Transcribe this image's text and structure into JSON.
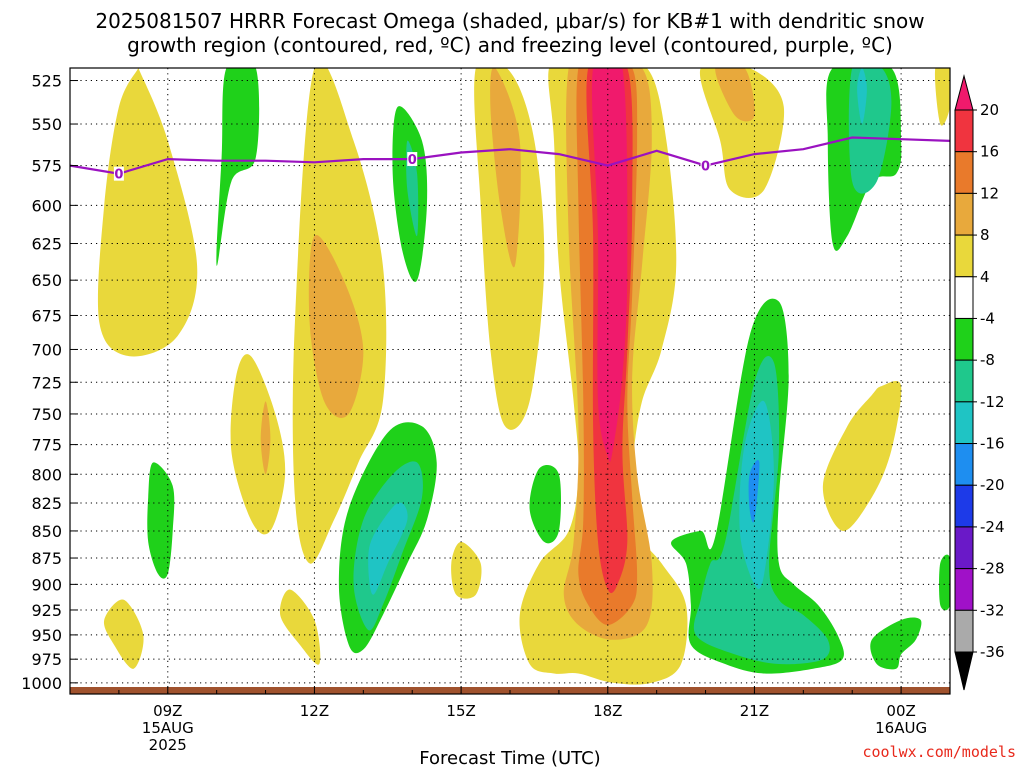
{
  "header": {
    "title_line1": "2025081507 HRRR Forecast Omega (shaded, μbar/s) for KB#1 with dendritic snow",
    "title_line2": "growth region (contoured, red, ºC) and freezing level (contoured, purple, ºC)"
  },
  "footer": {
    "credit": "coolwx.com/models",
    "credit_color": "#e8291c"
  },
  "colors": {
    "ground": "#a0522d",
    "freezing_line": "#9a12c0"
  },
  "chart_data": {
    "type": "heatmap",
    "title": "2025081507 HRRR Forecast Omega (shaded, μbar/s) for KB#1 with dendritic snow growth region (contoured, red, ºC) and freezing level (contoured, purple, ºC)",
    "xlabel": "Forecast Time (UTC)",
    "ylabel": "",
    "x_range_hours_utc": [
      7,
      25
    ],
    "y_range_hpa": [
      1012,
      518
    ],
    "y_scale": "log-pressure, inverted",
    "grid": true,
    "y_ticks": [
      525,
      550,
      575,
      600,
      625,
      650,
      675,
      700,
      725,
      750,
      775,
      800,
      825,
      850,
      875,
      900,
      925,
      950,
      975,
      1000
    ],
    "x_ticks": [
      {
        "hour": 9,
        "lines": [
          "09Z",
          "15AUG",
          "2025"
        ]
      },
      {
        "hour": 12,
        "lines": [
          "12Z"
        ]
      },
      {
        "hour": 15,
        "lines": [
          "15Z"
        ]
      },
      {
        "hour": 18,
        "lines": [
          "18Z"
        ]
      },
      {
        "hour": 21,
        "lines": [
          "21Z"
        ]
      },
      {
        "hour": 24,
        "lines": [
          "00Z",
          "16AUG"
        ]
      }
    ],
    "colorbar": {
      "labels": [
        "20",
        "16",
        "12",
        "8",
        "4",
        "-4",
        "-8",
        "-12",
        "-16",
        "-20",
        "-24",
        "-28",
        "-32",
        "-36"
      ],
      "colors": [
        "#f01a6c",
        "#f0343f",
        "#e97a2b",
        "#e8a93c",
        "#e9d83b",
        "#ffffff",
        "#1fd11a",
        "#1fc88c",
        "#1fc4c4",
        "#1e8ef0",
        "#1d3ae8",
        "#6a19c8",
        "#a011c8",
        "#aaaaaa",
        "#000000"
      ]
    },
    "freezing_level": {
      "label": "0",
      "hours": [
        7,
        8,
        9,
        10,
        11,
        12,
        13,
        14,
        15,
        16,
        17,
        18,
        19,
        20,
        21,
        22,
        23,
        24,
        25
      ],
      "hpa": [
        575,
        580,
        571,
        572,
        572,
        573,
        571,
        571,
        567,
        565,
        568,
        575,
        566,
        575,
        568,
        565,
        558,
        559,
        560
      ],
      "label_hours": [
        8,
        14,
        20
      ]
    },
    "omega_regions": [
      {
        "level": 4,
        "hours": [
          8.4,
          9.0,
          9.6,
          9.2,
          8.2,
          7.6,
          7.7,
          8.0,
          8.4
        ],
        "hpa": [
          518,
          560,
          640,
          690,
          705,
          680,
          600,
          540,
          518
        ]
      },
      {
        "level": 4,
        "hours": [
          10.7,
          11.2,
          11.4,
          11.1,
          10.7,
          10.3,
          10.4
        ],
        "hpa": [
          705,
          750,
          800,
          850,
          840,
          780,
          720
        ]
      },
      {
        "level": 8,
        "hours": [
          11.0,
          11.1,
          11.0,
          10.9
        ],
        "hpa": [
          740,
          770,
          800,
          770
        ]
      },
      {
        "level": 4,
        "hours": [
          8.1,
          8.5,
          8.3,
          7.9,
          7.7
        ],
        "hpa": [
          915,
          950,
          985,
          960,
          935
        ]
      },
      {
        "level": 4,
        "hours": [
          12.0,
          12.8,
          13.4,
          13.4,
          12.9,
          12.4,
          11.9,
          11.6,
          11.6
        ],
        "hpa": [
          518,
          560,
          640,
          740,
          790,
          840,
          880,
          820,
          680
        ]
      },
      {
        "level": 8,
        "hours": [
          12.0,
          12.6,
          13.0,
          12.7,
          12.2,
          11.9
        ],
        "hpa": [
          620,
          650,
          700,
          750,
          740,
          680
        ]
      },
      {
        "level": 4,
        "hours": [
          11.5,
          12.0,
          12.1,
          11.7,
          11.3
        ],
        "hpa": [
          905,
          935,
          980,
          960,
          930
        ]
      },
      {
        "level": 4,
        "hours": [
          15.0,
          15.4,
          15.3,
          14.9,
          14.8
        ],
        "hpa": [
          860,
          880,
          910,
          910,
          880
        ]
      },
      {
        "level": 4,
        "hours": [
          15.3,
          16.0,
          16.5,
          16.7,
          16.4,
          15.9,
          15.6,
          15.4
        ],
        "hpa": [
          518,
          520,
          560,
          640,
          740,
          760,
          700,
          600
        ]
      },
      {
        "level": 8,
        "hours": [
          15.7,
          16.2,
          16.1,
          15.8,
          15.6
        ],
        "hpa": [
          518,
          560,
          640,
          600,
          540
        ]
      },
      {
        "level": 4,
        "hours": [
          16.8,
          17.3,
          17.9,
          18.8,
          19.2,
          19.4,
          19.1,
          18.7,
          18.5,
          18.4,
          19.1,
          19.6,
          19.5,
          18.9,
          18.1,
          17.4,
          16.9,
          16.4,
          16.2,
          16.6,
          17.2,
          17.4,
          17.3,
          17.0,
          16.9
        ],
        "hpa": [
          518,
          518,
          518,
          518,
          560,
          640,
          700,
          740,
          790,
          840,
          880,
          920,
          980,
          1000,
          1000,
          990,
          990,
          980,
          930,
          880,
          850,
          800,
          740,
          640,
          560
        ]
      },
      {
        "level": 8,
        "hours": [
          17.2,
          17.8,
          18.7,
          18.9,
          18.7,
          18.5,
          18.6,
          18.9,
          18.8,
          18.1,
          17.4,
          17.1,
          17.3,
          17.4,
          17.2
        ],
        "hpa": [
          518,
          518,
          518,
          560,
          640,
          720,
          800,
          880,
          940,
          955,
          940,
          910,
          860,
          760,
          620
        ]
      },
      {
        "level": 12,
        "hours": [
          17.4,
          17.9,
          18.5,
          18.6,
          18.5,
          18.4,
          18.5,
          18.6,
          18.5,
          18.0,
          17.6,
          17.4,
          17.5,
          17.5,
          17.4
        ],
        "hpa": [
          518,
          518,
          518,
          560,
          660,
          740,
          820,
          890,
          920,
          940,
          920,
          890,
          840,
          740,
          600
        ]
      },
      {
        "level": 16,
        "hours": [
          17.6,
          18.4,
          18.5,
          18.4,
          18.3,
          18.4,
          18.2,
          18.0,
          17.8,
          17.7,
          17.7
        ],
        "hpa": [
          518,
          518,
          600,
          700,
          780,
          860,
          900,
          905,
          860,
          760,
          620
        ]
      },
      {
        "level": 20,
        "hours": [
          17.7,
          18.3,
          18.4,
          18.3,
          18.1,
          18.0,
          17.8,
          17.8
        ],
        "hpa": [
          518,
          518,
          640,
          720,
          780,
          785,
          740,
          620
        ]
      },
      {
        "level": 4,
        "hours": [
          19.9,
          20.9,
          21.6,
          21.2,
          20.5,
          20.3
        ],
        "hpa": [
          518,
          518,
          540,
          590,
          590,
          560
        ]
      },
      {
        "level": 8,
        "hours": [
          20.2,
          20.8,
          21.0,
          20.6
        ],
        "hpa": [
          518,
          518,
          545,
          545
        ]
      },
      {
        "level": 4,
        "hours": [
          23.6,
          24.0,
          23.8,
          23.4,
          22.8,
          22.4,
          22.9,
          23.4
        ],
        "hpa": [
          728,
          728,
          780,
          820,
          850,
          810,
          760,
          735
        ]
      },
      {
        "level": 4,
        "hours": [
          24.7,
          25.0,
          25.0,
          24.8
        ],
        "hpa": [
          518,
          518,
          540,
          550
        ]
      },
      {
        "level": -4,
        "hours": [
          10.2,
          10.8,
          10.8,
          10.3,
          10.0,
          10.1
        ],
        "hpa": [
          518,
          518,
          570,
          585,
          640,
          570
        ]
      },
      {
        "level": -4,
        "hours": [
          13.7,
          14.2,
          14.3,
          14.1,
          13.8,
          13.6
        ],
        "hpa": [
          540,
          560,
          600,
          650,
          630,
          580
        ]
      },
      {
        "level": -8,
        "hours": [
          13.9,
          14.1,
          14.1,
          13.9
        ],
        "hpa": [
          560,
          580,
          620,
          590
        ]
      },
      {
        "level": -4,
        "hours": [
          8.7,
          9.1,
          9.1,
          9.0,
          8.8,
          8.6,
          8.6
        ],
        "hpa": [
          790,
          810,
          850,
          890,
          890,
          860,
          820
        ]
      },
      {
        "level": -4,
        "hours": [
          12.7,
          13.5,
          14.2,
          14.5,
          14.3,
          13.9,
          13.4,
          13.0,
          12.7,
          12.5
        ],
        "hpa": [
          830,
          765,
          760,
          790,
          840,
          880,
          930,
          965,
          960,
          900
        ]
      },
      {
        "level": -8,
        "hours": [
          13.0,
          13.6,
          14.1,
          14.2,
          13.8,
          13.4,
          13.1,
          12.8
        ],
        "hpa": [
          840,
          800,
          790,
          820,
          870,
          920,
          945,
          900
        ]
      },
      {
        "level": -12,
        "hours": [
          13.2,
          13.7,
          13.9,
          13.5,
          13.2,
          13.1
        ],
        "hpa": [
          855,
          825,
          840,
          880,
          910,
          880
        ]
      },
      {
        "level": -4,
        "hours": [
          16.6,
          17.0,
          17.0,
          16.7,
          16.4
        ],
        "hpa": [
          795,
          800,
          850,
          860,
          830
        ]
      },
      {
        "level": -4,
        "hours": [
          20.2,
          20.9,
          21.5,
          21.7,
          21.5,
          21.5,
          21.8,
          22.3,
          22.7,
          22.8,
          22.2,
          21.2,
          20.4,
          19.7,
          19.7,
          19.6,
          19.3,
          19.9
        ],
        "hpa": [
          855,
          690,
          665,
          720,
          820,
          880,
          900,
          920,
          950,
          975,
          985,
          990,
          980,
          960,
          920,
          880,
          860,
          850
        ]
      },
      {
        "level": -8,
        "hours": [
          20.4,
          21.0,
          21.4,
          21.5,
          21.3,
          21.5,
          22.0,
          22.5,
          22.4,
          21.5,
          20.6,
          19.8,
          19.9,
          20.1
        ],
        "hpa": [
          860,
          725,
          710,
          780,
          880,
          915,
          930,
          955,
          975,
          980,
          970,
          950,
          915,
          880
        ]
      },
      {
        "level": -12,
        "hours": [
          20.8,
          21.2,
          21.4,
          21.2,
          21.0,
          20.7
        ],
        "hpa": [
          775,
          740,
          800,
          890,
          900,
          850
        ]
      },
      {
        "level": -16,
        "hours": [
          20.9,
          21.1,
          21.0,
          20.9
        ],
        "hpa": [
          800,
          790,
          840,
          830
        ]
      },
      {
        "level": -4,
        "hours": [
          22.6,
          23.8,
          24.0,
          23.9,
          23.4,
          22.9,
          22.6,
          22.5
        ],
        "hpa": [
          518,
          518,
          560,
          580,
          585,
          620,
          625,
          560
        ]
      },
      {
        "level": -8,
        "hours": [
          23.0,
          23.6,
          23.8,
          23.5,
          23.0
        ],
        "hpa": [
          518,
          518,
          540,
          585,
          585
        ]
      },
      {
        "level": -12,
        "hours": [
          23.2,
          23.3,
          23.2,
          23.1
        ],
        "hpa": [
          518,
          530,
          550,
          530
        ]
      },
      {
        "level": -4,
        "hours": [
          24.0,
          24.4,
          24.3,
          24.0,
          23.9,
          23.5,
          23.4
        ],
        "hpa": [
          935,
          935,
          955,
          970,
          985,
          980,
          955
        ]
      },
      {
        "level": -4,
        "hours": [
          24.8,
          25.0,
          25.0,
          24.8
        ],
        "hpa": [
          880,
          875,
          920,
          920
        ]
      }
    ]
  }
}
